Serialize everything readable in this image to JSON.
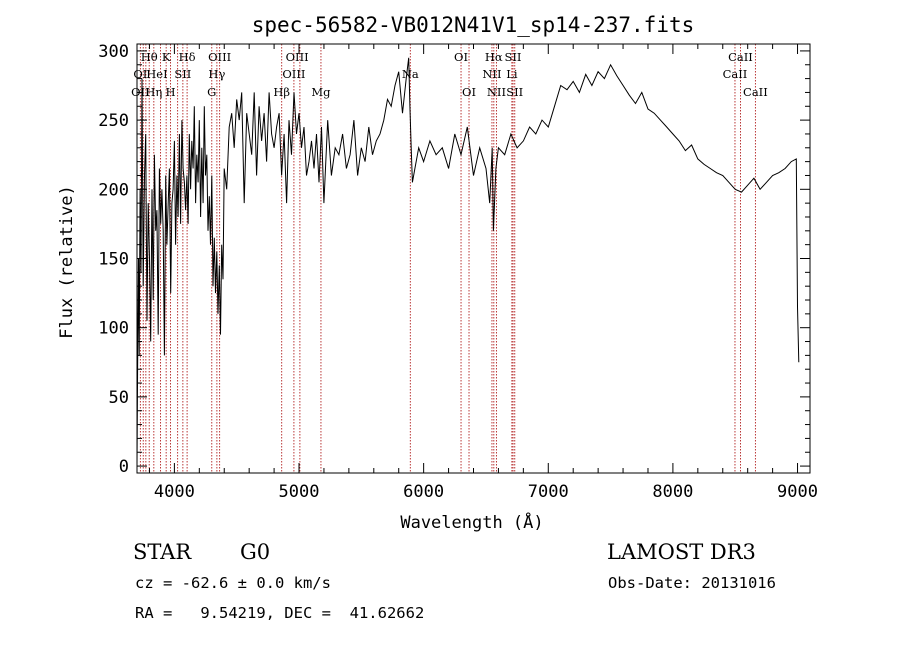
{
  "chart_data": {
    "type": "line",
    "title": "spec-56582-VB012N41V1_sp14-237.fits",
    "xlabel": "Wavelength (Å)",
    "ylabel": "Flux (relative)",
    "xlim": [
      3700,
      9100
    ],
    "ylim": [
      -5,
      305
    ],
    "xticks": [
      4000,
      5000,
      6000,
      7000,
      8000,
      9000
    ],
    "yticks": [
      0,
      50,
      100,
      150,
      200,
      250,
      300
    ],
    "series": [
      {
        "name": "flux",
        "x": [
          3700,
          3705,
          3712,
          3718,
          3725,
          3732,
          3740,
          3750,
          3760,
          3770,
          3780,
          3790,
          3800,
          3810,
          3820,
          3830,
          3840,
          3850,
          3860,
          3870,
          3880,
          3890,
          3900,
          3910,
          3920,
          3930,
          3940,
          3950,
          3960,
          3970,
          3980,
          3990,
          4000,
          4010,
          4020,
          4030,
          4040,
          4050,
          4060,
          4070,
          4080,
          4090,
          4100,
          4110,
          4120,
          4130,
          4140,
          4150,
          4160,
          4170,
          4180,
          4190,
          4200,
          4210,
          4220,
          4230,
          4240,
          4250,
          4260,
          4270,
          4280,
          4290,
          4300,
          4310,
          4320,
          4330,
          4340,
          4350,
          4360,
          4370,
          4380,
          4390,
          4400,
          4420,
          4440,
          4460,
          4480,
          4500,
          4520,
          4540,
          4560,
          4580,
          4600,
          4620,
          4640,
          4660,
          4680,
          4700,
          4720,
          4740,
          4760,
          4780,
          4800,
          4820,
          4840,
          4860,
          4880,
          4900,
          4920,
          4940,
          4960,
          4980,
          5000,
          5020,
          5040,
          5060,
          5080,
          5100,
          5120,
          5140,
          5160,
          5180,
          5200,
          5230,
          5260,
          5290,
          5320,
          5350,
          5380,
          5410,
          5440,
          5470,
          5500,
          5530,
          5560,
          5590,
          5620,
          5650,
          5680,
          5710,
          5740,
          5770,
          5800,
          5830,
          5860,
          5880,
          5890,
          5900,
          5910,
          5930,
          5960,
          6000,
          6050,
          6100,
          6150,
          6200,
          6250,
          6300,
          6350,
          6400,
          6450,
          6500,
          6530,
          6550,
          6560,
          6580,
          6600,
          6650,
          6700,
          6750,
          6800,
          6850,
          6900,
          6950,
          7000,
          7050,
          7100,
          7150,
          7200,
          7250,
          7300,
          7350,
          7400,
          7450,
          7500,
          7550,
          7600,
          7650,
          7700,
          7750,
          7800,
          7850,
          7900,
          7950,
          8000,
          8050,
          8100,
          8150,
          8200,
          8250,
          8300,
          8350,
          8400,
          8450,
          8500,
          8550,
          8600,
          8650,
          8700,
          8750,
          8800,
          8850,
          8900,
          8950,
          8990,
          9000,
          9010
        ],
        "values": [
          0,
          70,
          150,
          80,
          200,
          140,
          280,
          130,
          210,
          240,
          105,
          190,
          150,
          90,
          200,
          120,
          225,
          170,
          185,
          95,
          215,
          175,
          200,
          170,
          80,
          210,
          160,
          190,
          215,
          125,
          190,
          200,
          235,
          160,
          210,
          180,
          240,
          175,
          250,
          215,
          205,
          185,
          210,
          175,
          240,
          200,
          235,
          215,
          260,
          190,
          225,
          205,
          250,
          180,
          230,
          190,
          260,
          210,
          225,
          170,
          195,
          160,
          210,
          130,
          165,
          125,
          155,
          110,
          145,
          95,
          160,
          135,
          215,
          200,
          245,
          255,
          230,
          265,
          250,
          270,
          190,
          255,
          240,
          225,
          270,
          210,
          260,
          235,
          255,
          220,
          270,
          240,
          230,
          245,
          255,
          210,
          240,
          190,
          250,
          225,
          270,
          240,
          255,
          230,
          245,
          210,
          220,
          235,
          215,
          240,
          205,
          245,
          190,
          250,
          210,
          230,
          225,
          240,
          215,
          225,
          250,
          210,
          230,
          220,
          245,
          225,
          235,
          240,
          250,
          265,
          260,
          275,
          285,
          255,
          280,
          295,
          260,
          230,
          205,
          215,
          230,
          220,
          235,
          225,
          230,
          215,
          240,
          225,
          245,
          210,
          230,
          215,
          190,
          230,
          170,
          215,
          230,
          225,
          240,
          230,
          235,
          245,
          240,
          250,
          245,
          260,
          275,
          272,
          278,
          270,
          283,
          275,
          285,
          280,
          290,
          282,
          275,
          268,
          262,
          270,
          258,
          255,
          250,
          245,
          240,
          235,
          228,
          232,
          222,
          218,
          215,
          212,
          210,
          205,
          200,
          198,
          203,
          208,
          200,
          205,
          210,
          212,
          215,
          220,
          222,
          115,
          75
        ]
      }
    ],
    "line_markers": {
      "x": [
        3727,
        3750,
        3771,
        3798,
        3835,
        3889,
        3934,
        3969,
        4026,
        4068,
        4102,
        4300,
        4341,
        4363,
        4861,
        4959,
        5007,
        5176,
        5893,
        6300,
        6364,
        6548,
        6563,
        6584,
        6708,
        6717,
        6731,
        8498,
        8542,
        8662
      ],
      "labels": [
        {
          "text": "Hθ",
          "x": 3798,
          "row": 0
        },
        {
          "text": "K",
          "x": 3934,
          "row": 0
        },
        {
          "text": "Hδ",
          "x": 4102,
          "row": 0
        },
        {
          "text": "OIII",
          "x": 4363,
          "row": 0
        },
        {
          "text": "OIII",
          "x": 4985,
          "row": 0
        },
        {
          "text": "OI",
          "x": 6300,
          "row": 0
        },
        {
          "text": "Hα",
          "x": 6563,
          "row": 0
        },
        {
          "text": "SII",
          "x": 6717,
          "row": 0
        },
        {
          "text": "CaII",
          "x": 8542,
          "row": 0
        },
        {
          "text": "OI",
          "x": 3727,
          "row": 1
        },
        {
          "text": "HeI",
          "x": 3860,
          "row": 1
        },
        {
          "text": "SII",
          "x": 4068,
          "row": 1
        },
        {
          "text": "Hγ",
          "x": 4341,
          "row": 1
        },
        {
          "text": "OIII",
          "x": 4959,
          "row": 1
        },
        {
          "text": "Na",
          "x": 5893,
          "row": 1
        },
        {
          "text": "NII",
          "x": 6548,
          "row": 1
        },
        {
          "text": "Li",
          "x": 6708,
          "row": 1
        },
        {
          "text": "CaII",
          "x": 8498,
          "row": 1
        },
        {
          "text": "OII",
          "x": 3727,
          "row": 2
        },
        {
          "text": "Hη",
          "x": 3835,
          "row": 2
        },
        {
          "text": "H",
          "x": 3969,
          "row": 2
        },
        {
          "text": "G",
          "x": 4300,
          "row": 2
        },
        {
          "text": "Hβ",
          "x": 4861,
          "row": 2
        },
        {
          "text": "Mg",
          "x": 5176,
          "row": 2
        },
        {
          "text": "OI",
          "x": 6364,
          "row": 2
        },
        {
          "text": "NII",
          "x": 6584,
          "row": 2
        },
        {
          "text": "SII",
          "x": 6731,
          "row": 2
        },
        {
          "text": "CaII",
          "x": 8662,
          "row": 2
        }
      ]
    }
  },
  "info": {
    "class": "STAR",
    "subclass": "G0",
    "survey": "LAMOST DR3",
    "redshift": "cz = -62.6 ± 0.0 km/s",
    "obs_date": "Obs-Date: 20131016",
    "coords": "RA =   9.54219, DEC =  41.62662"
  },
  "colors": {
    "marker": "#b22222",
    "line": "#000000"
  }
}
